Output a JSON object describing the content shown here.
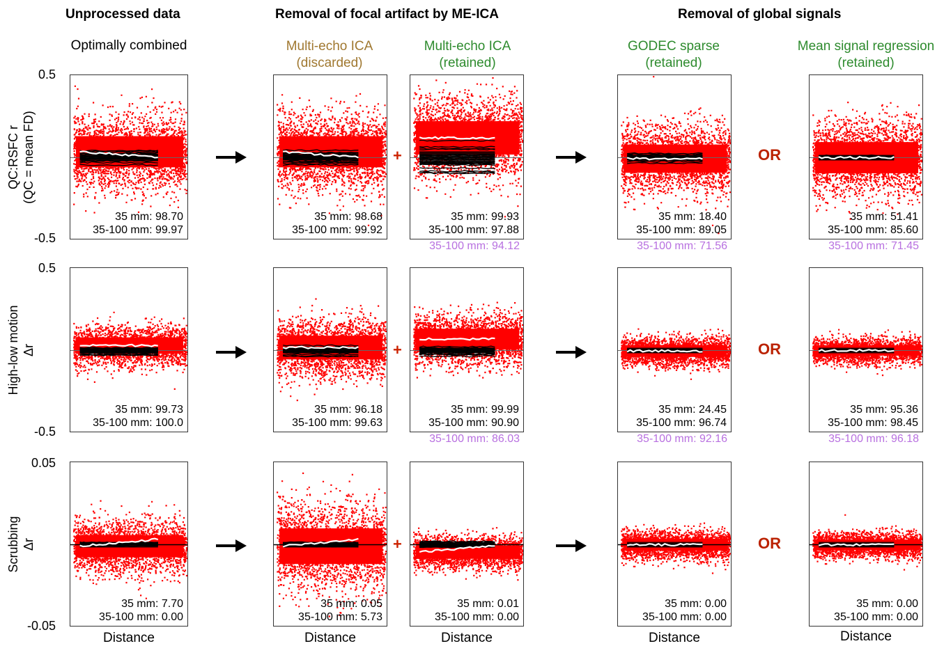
{
  "headers": {
    "unprocessed": "Unprocessed data",
    "focal": "Removal of focal artifact by ME-ICA",
    "global": "Removal of global signals"
  },
  "columns": [
    {
      "line1": "Optimally combined",
      "line2": "",
      "color": "#000000"
    },
    {
      "line1": "Multi-echo ICA",
      "line2": "(discarded)",
      "color": "#a07830"
    },
    {
      "line1": "Multi-echo ICA",
      "line2": "(retained)",
      "color": "#2e8b2e"
    },
    {
      "line1": "GODEC sparse",
      "line2": "(retained)",
      "color": "#2e8b2e"
    },
    {
      "line1": "Mean signal regression",
      "line2": "(retained)",
      "color": "#2e8b2e"
    }
  ],
  "rows": [
    {
      "ylabel1": "QC:RSFC r",
      "ylabel2": "(QC = mean FD)",
      "ymax": "0.5",
      "ymin": "-0.5"
    },
    {
      "ylabel1": "High-low motion",
      "ylabel2": "Δr",
      "ymax": "0.5",
      "ymin": "-0.5"
    },
    {
      "ylabel1": "Scrubbing",
      "ylabel2": "Δr",
      "ymax": "0.05",
      "ymin": "-0.05"
    }
  ],
  "xlabel": "Distance",
  "plus": "+",
  "or": "OR",
  "colors": {
    "scatter": "#ff0000",
    "mean_line": "#ffffff",
    "subject_lines": "#000000",
    "purple": "#b870e0"
  },
  "chart_data": {
    "type": "scatter",
    "xlabel": "Distance",
    "panels": [
      {
        "row": 0,
        "col": 0,
        "stat1": "35 mm: 98.70",
        "stat2": "35-100 mm: 99.97",
        "stat3": ""
      },
      {
        "row": 0,
        "col": 1,
        "stat1": "35 mm: 98.68",
        "stat2": "35-100 mm: 99.92",
        "stat3": ""
      },
      {
        "row": 0,
        "col": 2,
        "stat1": "35 mm: 99.93",
        "stat2": "35-100 mm: 97.88",
        "stat3": "35-100 mm: 94.12"
      },
      {
        "row": 0,
        "col": 3,
        "stat1": "35 mm: 18.40",
        "stat2": "35-100 mm: 89.05",
        "stat3": "35-100 mm: 71.56"
      },
      {
        "row": 0,
        "col": 4,
        "stat1": "35 mm: 51.41",
        "stat2": "35-100 mm: 85.60",
        "stat3": "35-100 mm: 71.45"
      },
      {
        "row": 1,
        "col": 0,
        "stat1": "35 mm: 99.73",
        "stat2": "35-100 mm: 100.0",
        "stat3": ""
      },
      {
        "row": 1,
        "col": 1,
        "stat1": "35 mm: 96.18",
        "stat2": "35-100 mm: 99.63",
        "stat3": ""
      },
      {
        "row": 1,
        "col": 2,
        "stat1": "35 mm: 99.99",
        "stat2": "35-100 mm: 90.90",
        "stat3": "35-100 mm: 86.03"
      },
      {
        "row": 1,
        "col": 3,
        "stat1": "35 mm: 24.45",
        "stat2": "35-100 mm: 96.74",
        "stat3": "35-100 mm: 92.16"
      },
      {
        "row": 1,
        "col": 4,
        "stat1": "35 mm: 95.36",
        "stat2": "35-100 mm: 98.45",
        "stat3": "35-100 mm: 96.18"
      },
      {
        "row": 2,
        "col": 0,
        "stat1": "35 mm: 7.70",
        "stat2": "35-100 mm: 0.00",
        "stat3": ""
      },
      {
        "row": 2,
        "col": 1,
        "stat1": "35 mm: 0.05",
        "stat2": "35-100 mm: 5.73",
        "stat3": ""
      },
      {
        "row": 2,
        "col": 2,
        "stat1": "35 mm: 0.01",
        "stat2": "35-100 mm: 0.00",
        "stat3": ""
      },
      {
        "row": 2,
        "col": 3,
        "stat1": "35 mm: 0.00",
        "stat2": "35-100 mm: 0.00",
        "stat3": ""
      },
      {
        "row": 2,
        "col": 4,
        "stat1": "35 mm: 0.00",
        "stat2": "35-100 mm: 0.00",
        "stat3": ""
      }
    ]
  }
}
